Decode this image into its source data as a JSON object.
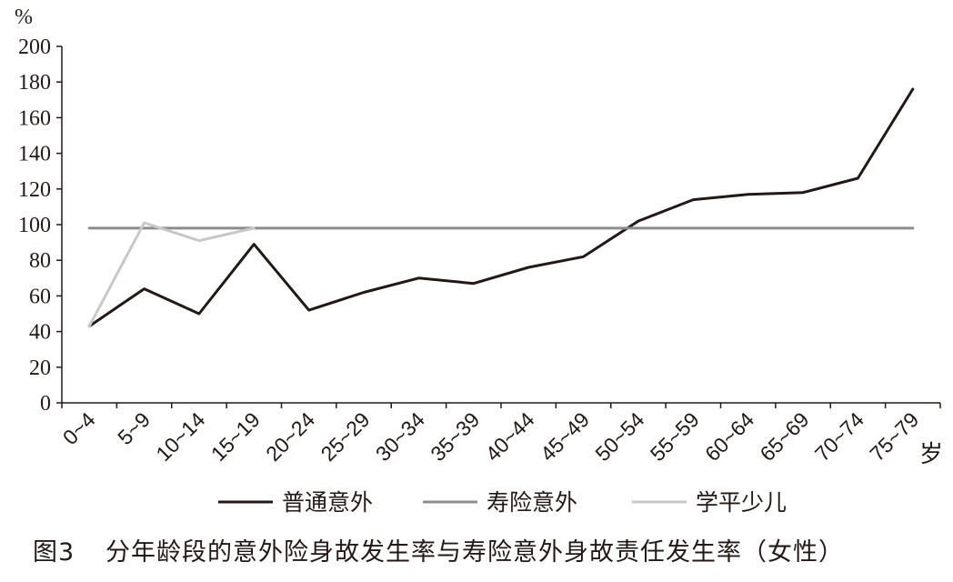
{
  "chart_data": {
    "type": "line",
    "categories": [
      "0~4",
      "5~9",
      "10~14",
      "15~19",
      "20~24",
      "25~29",
      "30~34",
      "35~39",
      "40~44",
      "45~49",
      "50~54",
      "55~59",
      "60~64",
      "65~69",
      "70~74",
      "75~79"
    ],
    "series": [
      {
        "name": "普通意外",
        "color": "#231815",
        "values": [
          43,
          64,
          50,
          89,
          52,
          62,
          70,
          67,
          76,
          82,
          102,
          114,
          117,
          118,
          126,
          176
        ]
      },
      {
        "name": "寿险意外",
        "color": "#8c8c8c",
        "values": [
          98,
          98,
          98,
          98,
          98,
          98,
          98,
          98,
          98,
          98,
          98,
          98,
          98,
          98,
          98,
          98
        ]
      },
      {
        "name": "学平少儿",
        "color": "#c8c8c8",
        "values": [
          43,
          101,
          91,
          98,
          null,
          null,
          null,
          null,
          null,
          null,
          null,
          null,
          null,
          null,
          null,
          null
        ]
      }
    ],
    "yticks": [
      0,
      20,
      40,
      60,
      80,
      100,
      120,
      140,
      160,
      180,
      200
    ],
    "ylim": [
      0,
      200
    ],
    "ylabel": "%",
    "xlabel": "岁",
    "legend_position": "bottom",
    "grid": false
  },
  "caption": {
    "number": "图3",
    "text": "分年龄段的意外险身故发生率与寿险意外身故责任发生率（女性）"
  }
}
